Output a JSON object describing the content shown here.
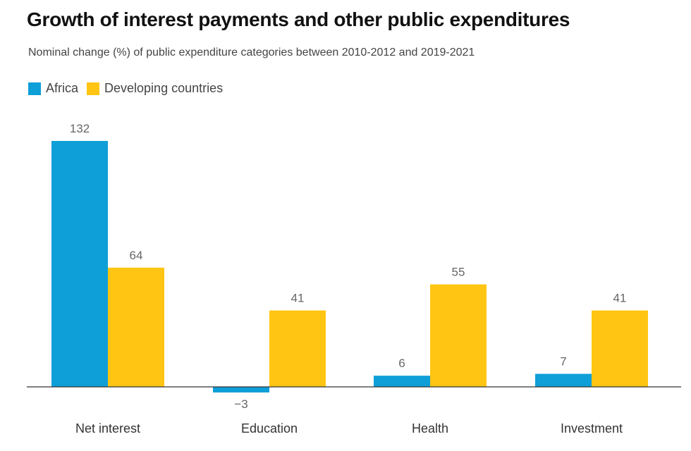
{
  "chart_data": {
    "type": "bar",
    "title": "Growth of interest payments and other public expenditures",
    "subtitle": "Nominal change (%) of public expenditure categories between 2010-2012 and 2019-2021",
    "categories": [
      "Net interest",
      "Education",
      "Health",
      "Investment"
    ],
    "series": [
      {
        "name": "Africa",
        "color": "#0E9FD8",
        "values": [
          132,
          -3,
          6,
          7
        ],
        "labels": [
          "132",
          "−3",
          "6",
          "7"
        ]
      },
      {
        "name": "Developing countries",
        "color": "#FFC512",
        "values": [
          64,
          41,
          55,
          41
        ],
        "labels": [
          "64",
          "41",
          "55",
          "41"
        ]
      }
    ],
    "ylim": [
      -3,
      132
    ],
    "grid": false,
    "legend_position": "top-left"
  }
}
